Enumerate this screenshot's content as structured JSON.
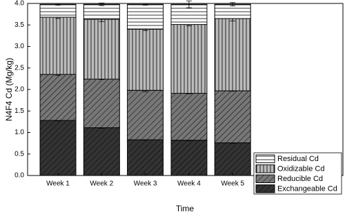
{
  "chart_data": {
    "type": "stacked_bar",
    "x_label": "Time",
    "y_label": "N4F4 Cd (Mg/kg)",
    "categories": [
      "Week 1",
      "Week 2",
      "Week 3",
      "Week 4",
      "Week 5"
    ],
    "series": [
      {
        "name": "Exchangeable Cd",
        "color": "#333333",
        "hatch": "diagonal",
        "values": [
          1.28,
          1.11,
          0.83,
          0.82,
          0.76
        ],
        "errors": [
          0.01,
          0.01,
          0.01,
          0.01,
          0.01
        ]
      },
      {
        "name": "Reducible Cd",
        "color": "#777777",
        "hatch": "diagonal",
        "values": [
          1.07,
          1.13,
          1.15,
          1.09,
          1.21
        ],
        "errors": [
          0.02,
          0.01,
          0.03,
          0.01,
          0.01
        ]
      },
      {
        "name": "Oxidizable Cd",
        "color": "#bbbbbb",
        "hatch": "vertical",
        "values": [
          1.33,
          1.39,
          1.42,
          1.6,
          1.68
        ],
        "errors": [
          0.03,
          0.05,
          0.03,
          0.03,
          0.06
        ]
      },
      {
        "name": "Residual Cd",
        "color": "#ffffff",
        "hatch": "horizontal",
        "values": [
          0.3,
          0.35,
          0.58,
          0.47,
          0.33
        ],
        "errors": [
          0.02,
          0.03,
          0.02,
          0.08,
          0.04
        ]
      }
    ],
    "ylim": [
      0,
      4
    ],
    "yticks": [
      {
        "value": 0,
        "label": "0.0"
      },
      0.5,
      {
        "value": 1,
        "label": "1.0"
      },
      1.5,
      {
        "value": 2,
        "label": "2.0"
      },
      2.5,
      {
        "value": 3,
        "label": "3.0"
      },
      3.5,
      {
        "value": 4,
        "label": "4.0"
      }
    ],
    "legend": "lower right"
  }
}
